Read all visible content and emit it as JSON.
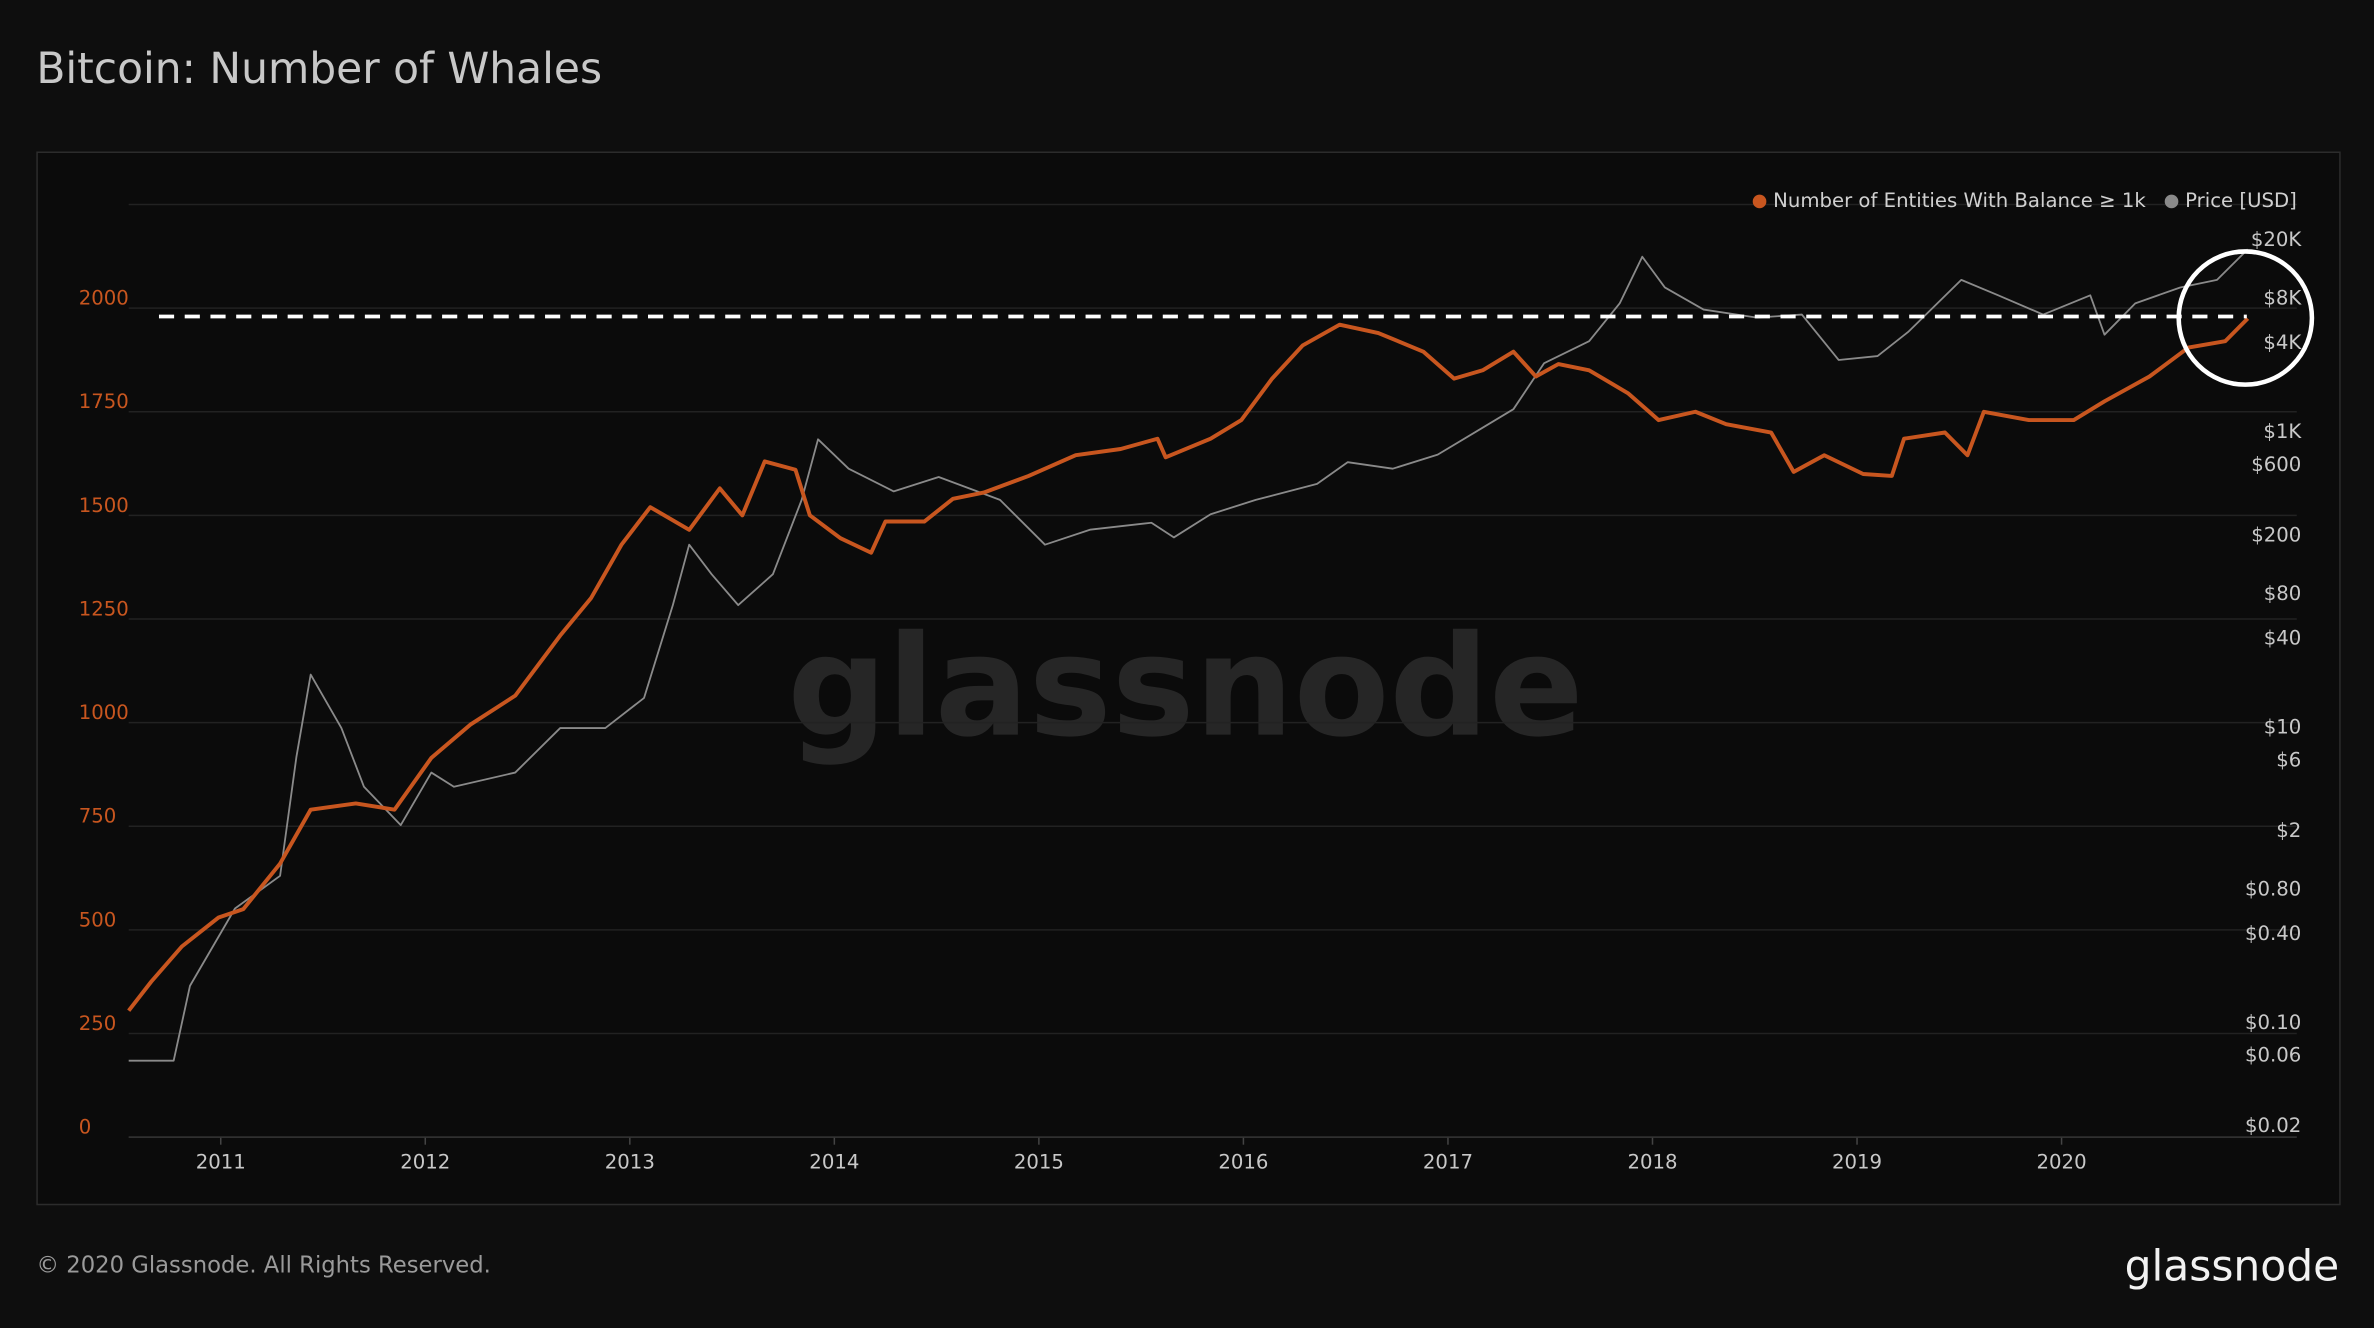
{
  "chart_data": {
    "type": "line",
    "title": "Bitcoin: Number of Whales",
    "watermark": "glassnode",
    "footer": "© 2020 Glassnode. All Rights Reserved.",
    "logo": "glassnode",
    "legend": "top-right",
    "grid": true,
    "log_y2": true,
    "xlim": [
      2010.55,
      2021.15
    ],
    "xticks": [
      2011,
      2012,
      2013,
      2014,
      2015,
      2016,
      2017,
      2018,
      2019,
      2020
    ],
    "ylim": [
      0,
      2250
    ],
    "yticks": [
      0,
      250,
      500,
      750,
      1000,
      1250,
      1500,
      1750,
      2000
    ],
    "y2lim": [
      0.017,
      35000
    ],
    "y2ticks": [
      {
        "value": 20000,
        "label": "$20K"
      },
      {
        "value": 8000,
        "label": "$8K"
      },
      {
        "value": 4000,
        "label": "$4K"
      },
      {
        "value": 1000,
        "label": "$1K"
      },
      {
        "value": 600,
        "label": "$600"
      },
      {
        "value": 200,
        "label": "$200"
      },
      {
        "value": 80,
        "label": "$80"
      },
      {
        "value": 40,
        "label": "$40"
      },
      {
        "value": 10,
        "label": "$10"
      },
      {
        "value": 6,
        "label": "$6"
      },
      {
        "value": 2,
        "label": "$2"
      },
      {
        "value": 0.8,
        "label": "$0.80"
      },
      {
        "value": 0.4,
        "label": "$0.40"
      },
      {
        "value": 0.1,
        "label": "$0.10"
      },
      {
        "value": 0.06,
        "label": "$0.06"
      },
      {
        "value": 0.02,
        "label": "$0.02"
      }
    ],
    "series": [
      {
        "name": "Number of Entities With Balance ≥ 1k",
        "color": "#c8561f",
        "axis": "y",
        "x": [
          2010.55,
          2010.66,
          2010.81,
          2010.99,
          2011.11,
          2011.29,
          2011.44,
          2011.66,
          2011.85,
          2012.03,
          2012.22,
          2012.44,
          2012.66,
          2012.81,
          2012.96,
          2013.1,
          2013.29,
          2013.44,
          2013.55,
          2013.66,
          2013.81,
          2013.88,
          2014.03,
          2014.18,
          2014.25,
          2014.44,
          2014.58,
          2014.73,
          2014.95,
          2015.18,
          2015.4,
          2015.58,
          2015.62,
          2015.84,
          2015.99,
          2016.14,
          2016.29,
          2016.47,
          2016.66,
          2016.88,
          2017.03,
          2017.17,
          2017.32,
          2017.43,
          2017.54,
          2017.69,
          2017.88,
          2018.03,
          2018.21,
          2018.36,
          2018.58,
          2018.69,
          2018.84,
          2019.03,
          2019.17,
          2019.23,
          2019.43,
          2019.54,
          2019.62,
          2019.84,
          2020.06,
          2020.21,
          2020.43,
          2020.62,
          2020.8,
          2020.91
        ],
        "values": [
          305,
          375,
          460,
          530,
          550,
          660,
          790,
          805,
          790,
          915,
          995,
          1065,
          1210,
          1300,
          1430,
          1520,
          1465,
          1565,
          1500,
          1630,
          1610,
          1500,
          1445,
          1410,
          1485,
          1485,
          1540,
          1555,
          1595,
          1645,
          1660,
          1685,
          1640,
          1685,
          1730,
          1830,
          1910,
          1960,
          1940,
          1895,
          1830,
          1850,
          1895,
          1835,
          1865,
          1850,
          1795,
          1730,
          1750,
          1720,
          1700,
          1605,
          1645,
          1600,
          1595,
          1685,
          1700,
          1645,
          1750,
          1730,
          1730,
          1775,
          1835,
          1905,
          1920,
          1975
        ]
      },
      {
        "name": "Price [USD]",
        "color": "#8a8a8a",
        "axis": "y2",
        "x": [
          2010.55,
          2010.77,
          2010.85,
          2011.07,
          2011.29,
          2011.37,
          2011.44,
          2011.59,
          2011.7,
          2011.88,
          2012.03,
          2012.14,
          2012.44,
          2012.66,
          2012.88,
          2013.07,
          2013.21,
          2013.29,
          2013.4,
          2013.53,
          2013.7,
          2013.84,
          2013.92,
          2014.07,
          2014.29,
          2014.51,
          2014.81,
          2015.03,
          2015.25,
          2015.55,
          2015.66,
          2015.84,
          2016.06,
          2016.36,
          2016.51,
          2016.73,
          2016.95,
          2017.14,
          2017.32,
          2017.47,
          2017.69,
          2017.84,
          2017.95,
          2018.06,
          2018.25,
          2018.51,
          2018.73,
          2018.91,
          2019.1,
          2019.25,
          2019.51,
          2019.69,
          2019.91,
          2020.14,
          2020.21,
          2020.36,
          2020.58,
          2020.76,
          2020.91
        ],
        "values": [
          0.056,
          0.056,
          0.18,
          0.6,
          1,
          6.4,
          23,
          10,
          4,
          2.2,
          5,
          4,
          5,
          10,
          10,
          16,
          68,
          174,
          110,
          68,
          110,
          350,
          900,
          570,
          400,
          500,
          350,
          174,
          220,
          245,
          195,
          280,
          350,
          450,
          630,
          570,
          710,
          1020,
          1440,
          2950,
          4150,
          7500,
          15500,
          9600,
          6800,
          6000,
          6300,
          3100,
          3300,
          4800,
          10800,
          8500,
          6300,
          8500,
          4600,
          7500,
          9600,
          10800,
          17400
        ]
      }
    ]
  }
}
